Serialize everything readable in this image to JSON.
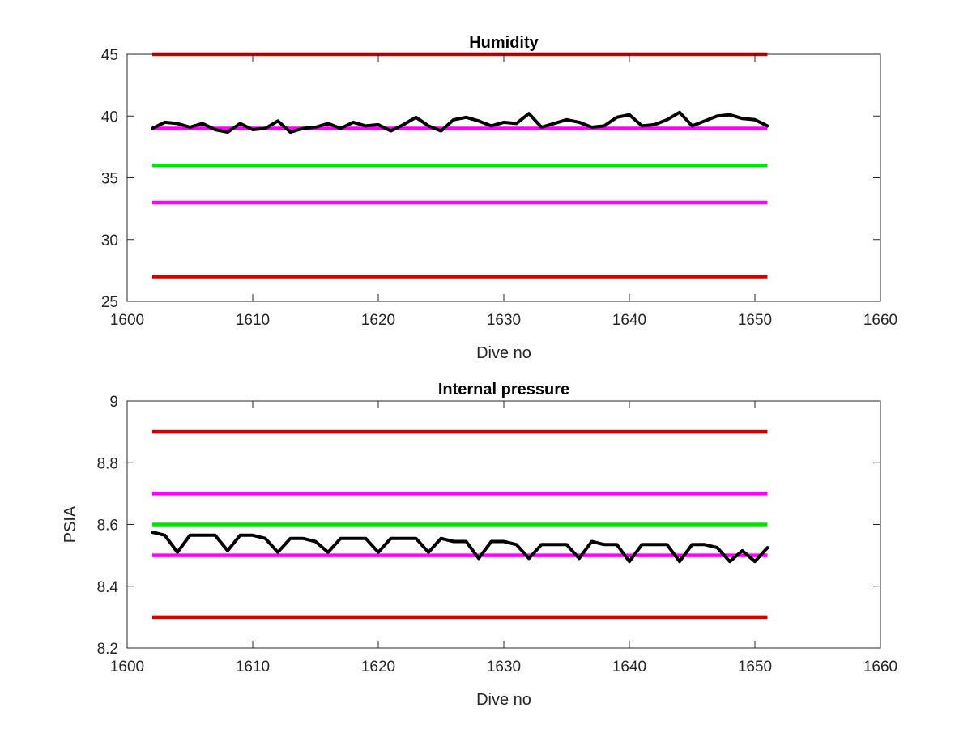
{
  "window_title": "",
  "chart_data": [
    {
      "type": "line",
      "title": "Humidity",
      "xlabel": "Dive no",
      "ylabel": "",
      "xlim": [
        1600,
        1660
      ],
      "ylim": [
        25,
        45
      ],
      "xticks": [
        1600,
        1610,
        1620,
        1630,
        1640,
        1650,
        1660
      ],
      "yticks": [
        25,
        30,
        35,
        40,
        45
      ],
      "grid": false,
      "legend": "none",
      "limit_lines": [
        {
          "color": "#d40000",
          "y": 45,
          "x": [
            1602,
            1651
          ]
        },
        {
          "color": "#ff00ff",
          "y": 39,
          "x": [
            1602,
            1651
          ]
        },
        {
          "color": "#00e600",
          "y": 36,
          "x": [
            1602,
            1651
          ]
        },
        {
          "color": "#ff00ff",
          "y": 33,
          "x": [
            1602,
            1651
          ]
        },
        {
          "color": "#d40000",
          "y": 27,
          "x": [
            1602,
            1651
          ]
        }
      ],
      "series": [
        {
          "color": "#000000",
          "x": [
            1602,
            1603,
            1604,
            1605,
            1606,
            1607,
            1608,
            1609,
            1610,
            1611,
            1612,
            1613,
            1614,
            1615,
            1616,
            1617,
            1618,
            1619,
            1620,
            1621,
            1622,
            1623,
            1624,
            1625,
            1626,
            1627,
            1628,
            1629,
            1630,
            1631,
            1632,
            1633,
            1634,
            1635,
            1636,
            1637,
            1638,
            1639,
            1640,
            1641,
            1642,
            1643,
            1644,
            1645,
            1646,
            1647,
            1648,
            1649,
            1650,
            1651
          ],
          "y": [
            39.0,
            39.5,
            39.4,
            39.1,
            39.4,
            38.9,
            38.7,
            39.4,
            38.9,
            39.0,
            39.6,
            38.7,
            39.0,
            39.1,
            39.4,
            39.0,
            39.5,
            39.2,
            39.3,
            38.8,
            39.3,
            39.9,
            39.2,
            38.8,
            39.7,
            39.9,
            39.6,
            39.2,
            39.5,
            39.4,
            40.2,
            39.1,
            39.4,
            39.7,
            39.5,
            39.1,
            39.2,
            39.9,
            40.1,
            39.2,
            39.3,
            39.7,
            40.3,
            39.2,
            39.6,
            40.0,
            40.1,
            39.8,
            39.7,
            39.2
          ]
        }
      ]
    },
    {
      "type": "line",
      "title": "Internal pressure",
      "xlabel": "Dive no",
      "ylabel": "PSIA",
      "xlim": [
        1600,
        1660
      ],
      "ylim": [
        8.2,
        9.0
      ],
      "xticks": [
        1600,
        1610,
        1620,
        1630,
        1640,
        1650,
        1660
      ],
      "yticks": [
        8.2,
        8.4,
        8.6,
        8.8,
        9.0
      ],
      "ytick_labels": [
        "8.2",
        "8.4",
        "8.6",
        "8.8",
        "9"
      ],
      "grid": false,
      "legend": "none",
      "limit_lines": [
        {
          "color": "#d40000",
          "y": 8.9,
          "x": [
            1602,
            1651
          ]
        },
        {
          "color": "#ff00ff",
          "y": 8.7,
          "x": [
            1602,
            1651
          ]
        },
        {
          "color": "#00e600",
          "y": 8.6,
          "x": [
            1602,
            1651
          ]
        },
        {
          "color": "#ff00ff",
          "y": 8.5,
          "x": [
            1602,
            1651
          ]
        },
        {
          "color": "#d40000",
          "y": 8.3,
          "x": [
            1602,
            1651
          ]
        }
      ],
      "series": [
        {
          "color": "#000000",
          "x": [
            1602,
            1603,
            1604,
            1605,
            1606,
            1607,
            1608,
            1609,
            1610,
            1611,
            1612,
            1613,
            1614,
            1615,
            1616,
            1617,
            1618,
            1619,
            1620,
            1621,
            1622,
            1623,
            1624,
            1625,
            1626,
            1627,
            1628,
            1629,
            1630,
            1631,
            1632,
            1633,
            1634,
            1635,
            1636,
            1637,
            1638,
            1639,
            1640,
            1641,
            1642,
            1643,
            1644,
            1645,
            1646,
            1647,
            1648,
            1649,
            1650,
            1651
          ],
          "y": [
            8.575,
            8.565,
            8.51,
            8.565,
            8.565,
            8.565,
            8.515,
            8.565,
            8.565,
            8.555,
            8.51,
            8.555,
            8.555,
            8.545,
            8.51,
            8.555,
            8.555,
            8.555,
            8.51,
            8.555,
            8.555,
            8.555,
            8.51,
            8.555,
            8.545,
            8.545,
            8.49,
            8.545,
            8.545,
            8.535,
            8.49,
            8.535,
            8.535,
            8.535,
            8.49,
            8.545,
            8.535,
            8.535,
            8.48,
            8.535,
            8.535,
            8.535,
            8.48,
            8.535,
            8.535,
            8.525,
            8.48,
            8.515,
            8.48,
            8.525
          ]
        }
      ]
    }
  ]
}
